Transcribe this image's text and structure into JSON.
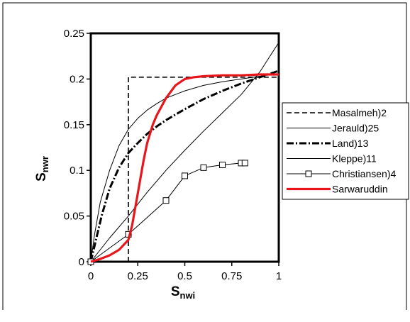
{
  "chart_data": {
    "type": "line",
    "xlabel": "S",
    "xlabel_sub": "nwi",
    "ylabel": "S",
    "ylabel_sub": "nwr",
    "xlim": [
      0,
      1
    ],
    "ylim": [
      0,
      0.25
    ],
    "x_ticks": [
      {
        "value": 0,
        "label": "0"
      },
      {
        "value": 0.25,
        "label": "0.25"
      },
      {
        "value": 0.5,
        "label": "0.5"
      },
      {
        "value": 0.75,
        "label": "0.75"
      },
      {
        "value": 1,
        "label": "1"
      }
    ],
    "y_ticks": [
      {
        "value": 0,
        "label": "0"
      },
      {
        "value": 0.05,
        "label": "0.05"
      },
      {
        "value": 0.1,
        "label": "0.1"
      },
      {
        "value": 0.15,
        "label": "0.15"
      },
      {
        "value": 0.2,
        "label": "0.2"
      },
      {
        "value": 0.25,
        "label": "0.25"
      }
    ],
    "grid": false,
    "legend_position": "right",
    "series": [
      {
        "name": "Masalmeh)2",
        "color": "#000000",
        "style": "dashed",
        "x": [
          0.2,
          0.2,
          1.0
        ],
        "y": [
          0.0,
          0.202,
          0.202
        ]
      },
      {
        "name": "Jerauld)25",
        "color": "#000000",
        "style": "thin",
        "x": [
          0.0,
          0.02,
          0.05,
          0.1,
          0.15,
          0.2,
          0.25,
          0.3,
          0.35,
          0.4,
          0.5,
          0.6,
          0.7,
          0.8,
          0.9,
          1.0
        ],
        "y": [
          0.0,
          0.03,
          0.065,
          0.1,
          0.127,
          0.145,
          0.157,
          0.166,
          0.173,
          0.179,
          0.187,
          0.193,
          0.197,
          0.2,
          0.203,
          0.206
        ]
      },
      {
        "name": "Land)13",
        "color": "#000000",
        "style": "dashdot",
        "x": [
          0.0,
          0.03,
          0.06,
          0.1,
          0.15,
          0.2,
          0.25,
          0.3,
          0.35,
          0.4,
          0.5,
          0.6,
          0.7,
          0.8,
          0.9,
          1.0
        ],
        "y": [
          0.0,
          0.026,
          0.052,
          0.08,
          0.103,
          0.119,
          0.13,
          0.14,
          0.148,
          0.155,
          0.167,
          0.178,
          0.187,
          0.195,
          0.202,
          0.209
        ]
      },
      {
        "name": "Kleppe)11",
        "color": "#000000",
        "style": "thin",
        "x": [
          0.0,
          0.1,
          0.2,
          0.3,
          0.4,
          0.5,
          0.6,
          0.7,
          0.8,
          0.9,
          1.0
        ],
        "y": [
          0.0,
          0.026,
          0.05,
          0.076,
          0.1,
          0.122,
          0.143,
          0.163,
          0.183,
          0.208,
          0.24
        ]
      },
      {
        "name": "Christiansen)4",
        "color": "#000000",
        "style": "markers",
        "x": [
          0.0,
          0.2,
          0.4,
          0.5,
          0.6,
          0.7,
          0.8,
          0.82
        ],
        "y": [
          0.0,
          0.03,
          0.067,
          0.094,
          0.103,
          0.106,
          0.108,
          0.108
        ]
      },
      {
        "name": "Sarwaruddin",
        "color": "#e8161b",
        "style": "thick",
        "x": [
          0.0,
          0.05,
          0.1,
          0.15,
          0.2,
          0.22,
          0.25,
          0.28,
          0.3,
          0.33,
          0.35,
          0.4,
          0.45,
          0.5,
          0.55,
          0.6,
          0.7,
          0.8,
          0.9,
          1.0
        ],
        "y": [
          0.0,
          0.003,
          0.007,
          0.013,
          0.024,
          0.04,
          0.075,
          0.11,
          0.13,
          0.15,
          0.16,
          0.179,
          0.193,
          0.2,
          0.202,
          0.203,
          0.204,
          0.204,
          0.205,
          0.205
        ]
      }
    ]
  }
}
